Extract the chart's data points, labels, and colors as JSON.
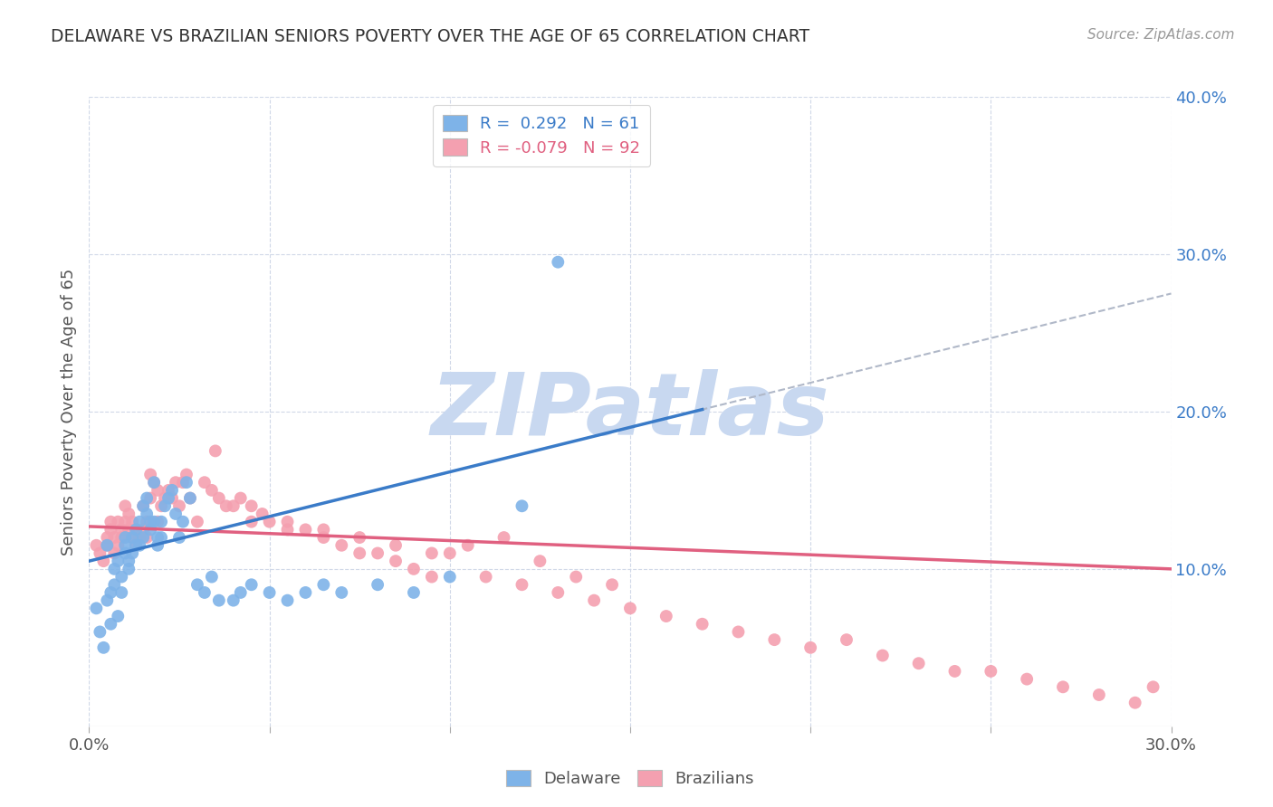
{
  "title": "DELAWARE VS BRAZILIAN SENIORS POVERTY OVER THE AGE OF 65 CORRELATION CHART",
  "source": "Source: ZipAtlas.com",
  "ylabel": "Seniors Poverty Over the Age of 65",
  "xlim": [
    0.0,
    0.3
  ],
  "ylim": [
    0.0,
    0.4
  ],
  "bg_color": "#ffffff",
  "grid_color": "#d0d8e8",
  "watermark": "ZIPatlas",
  "watermark_color": "#c8d8f0",
  "delaware_color": "#7eb3e8",
  "brazilian_color": "#f4a0b0",
  "trend_blue": "#3a7bc8",
  "trend_pink": "#e06080",
  "trend_gray": "#b0b8c8",
  "legend_label_1": "R =  0.292   N = 61",
  "legend_label_2": "R = -0.079   N = 92",
  "delaware_x": [
    0.002,
    0.003,
    0.004,
    0.005,
    0.005,
    0.006,
    0.006,
    0.007,
    0.007,
    0.008,
    0.008,
    0.009,
    0.009,
    0.01,
    0.01,
    0.01,
    0.011,
    0.011,
    0.012,
    0.012,
    0.013,
    0.013,
    0.014,
    0.014,
    0.015,
    0.015,
    0.016,
    0.016,
    0.017,
    0.017,
    0.018,
    0.018,
    0.019,
    0.019,
    0.02,
    0.02,
    0.021,
    0.022,
    0.023,
    0.024,
    0.025,
    0.026,
    0.027,
    0.028,
    0.03,
    0.032,
    0.034,
    0.036,
    0.04,
    0.042,
    0.045,
    0.05,
    0.055,
    0.06,
    0.065,
    0.07,
    0.08,
    0.09,
    0.1,
    0.12,
    0.13
  ],
  "delaware_y": [
    0.075,
    0.06,
    0.05,
    0.115,
    0.08,
    0.085,
    0.065,
    0.09,
    0.1,
    0.07,
    0.105,
    0.085,
    0.095,
    0.12,
    0.115,
    0.11,
    0.105,
    0.1,
    0.12,
    0.11,
    0.115,
    0.125,
    0.13,
    0.115,
    0.12,
    0.14,
    0.135,
    0.145,
    0.125,
    0.13,
    0.13,
    0.155,
    0.12,
    0.115,
    0.12,
    0.13,
    0.14,
    0.145,
    0.15,
    0.135,
    0.12,
    0.13,
    0.155,
    0.145,
    0.09,
    0.085,
    0.095,
    0.08,
    0.08,
    0.085,
    0.09,
    0.085,
    0.08,
    0.085,
    0.09,
    0.085,
    0.09,
    0.085,
    0.095,
    0.14,
    0.295
  ],
  "brazilian_x": [
    0.002,
    0.003,
    0.004,
    0.005,
    0.005,
    0.006,
    0.006,
    0.007,
    0.007,
    0.008,
    0.008,
    0.009,
    0.009,
    0.01,
    0.01,
    0.011,
    0.011,
    0.012,
    0.012,
    0.013,
    0.013,
    0.014,
    0.015,
    0.015,
    0.016,
    0.016,
    0.017,
    0.017,
    0.018,
    0.019,
    0.019,
    0.02,
    0.021,
    0.022,
    0.023,
    0.024,
    0.025,
    0.026,
    0.027,
    0.028,
    0.03,
    0.032,
    0.034,
    0.036,
    0.038,
    0.04,
    0.042,
    0.045,
    0.048,
    0.05,
    0.055,
    0.06,
    0.065,
    0.07,
    0.075,
    0.08,
    0.085,
    0.09,
    0.095,
    0.1,
    0.11,
    0.12,
    0.13,
    0.14,
    0.15,
    0.16,
    0.17,
    0.18,
    0.19,
    0.2,
    0.21,
    0.22,
    0.23,
    0.24,
    0.25,
    0.26,
    0.27,
    0.28,
    0.29,
    0.295,
    0.035,
    0.045,
    0.055,
    0.065,
    0.075,
    0.085,
    0.095,
    0.105,
    0.115,
    0.125,
    0.135,
    0.145
  ],
  "brazilian_y": [
    0.115,
    0.11,
    0.105,
    0.12,
    0.115,
    0.13,
    0.125,
    0.12,
    0.11,
    0.115,
    0.13,
    0.12,
    0.125,
    0.13,
    0.14,
    0.125,
    0.135,
    0.12,
    0.13,
    0.125,
    0.115,
    0.12,
    0.125,
    0.14,
    0.13,
    0.12,
    0.145,
    0.16,
    0.155,
    0.15,
    0.13,
    0.14,
    0.145,
    0.15,
    0.145,
    0.155,
    0.14,
    0.155,
    0.16,
    0.145,
    0.13,
    0.155,
    0.15,
    0.145,
    0.14,
    0.14,
    0.145,
    0.14,
    0.135,
    0.13,
    0.13,
    0.125,
    0.12,
    0.115,
    0.11,
    0.11,
    0.105,
    0.1,
    0.095,
    0.11,
    0.095,
    0.09,
    0.085,
    0.08,
    0.075,
    0.07,
    0.065,
    0.06,
    0.055,
    0.05,
    0.055,
    0.045,
    0.04,
    0.035,
    0.035,
    0.03,
    0.025,
    0.02,
    0.015,
    0.025,
    0.175,
    0.13,
    0.125,
    0.125,
    0.12,
    0.115,
    0.11,
    0.115,
    0.12,
    0.105,
    0.095,
    0.09
  ],
  "del_trend_x0": 0.0,
  "del_trend_y0": 0.105,
  "del_trend_x1": 0.3,
  "del_trend_y1": 0.275,
  "bra_trend_x0": 0.0,
  "bra_trend_y0": 0.127,
  "bra_trend_x1": 0.3,
  "bra_trend_y1": 0.1
}
